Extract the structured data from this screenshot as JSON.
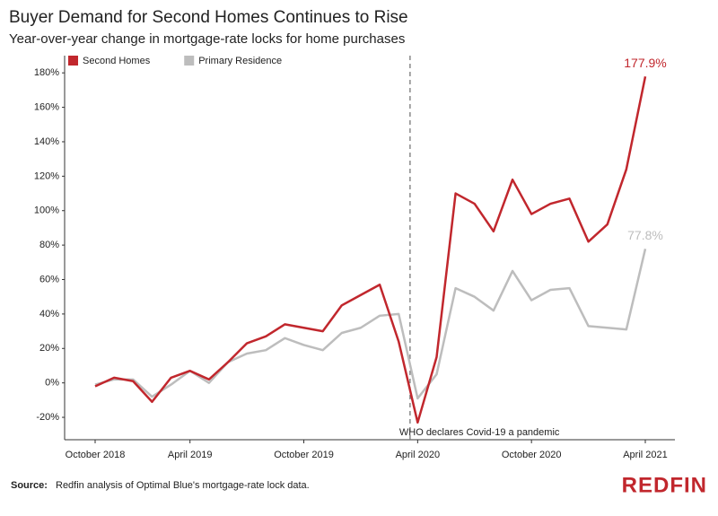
{
  "chart_data": {
    "type": "line",
    "title": "Buyer Demand for Second Homes Continues to Rise",
    "subtitle": "Year-over-year change in mortgage-rate locks for home purchases",
    "categories": [
      "October 2018",
      null,
      null,
      null,
      null,
      "April 2019",
      null,
      null,
      null,
      null,
      null,
      "October 2019",
      null,
      null,
      null,
      null,
      null,
      "April 2020",
      null,
      null,
      null,
      null,
      null,
      "October 2020",
      null,
      null,
      null,
      null,
      null,
      "April 2021"
    ],
    "series": [
      {
        "name": "Second Homes",
        "color": "#c1272d",
        "values": [
          -2,
          3,
          1,
          -11,
          3,
          7,
          2,
          12,
          23,
          27,
          34,
          32,
          30,
          45,
          51,
          57,
          24,
          -23,
          15,
          110,
          104,
          88,
          118,
          98,
          104,
          107,
          82,
          92,
          124,
          177.9
        ],
        "value_labels": [
          null,
          null,
          null,
          null,
          null,
          null,
          null,
          null,
          null,
          null,
          null,
          null,
          null,
          null,
          null,
          null,
          null,
          null,
          null,
          null,
          null,
          null,
          null,
          null,
          null,
          null,
          null,
          null,
          null,
          "177.9%"
        ]
      },
      {
        "name": "Primary Residence",
        "color": "#bdbdbd",
        "values": [
          -1,
          2,
          2,
          -8,
          -1,
          7,
          0,
          12,
          17,
          19,
          26,
          22,
          19,
          29,
          32,
          39,
          40,
          -9,
          5,
          55,
          50,
          42,
          65,
          48,
          54,
          55,
          33,
          32,
          31,
          77.8
        ],
        "value_labels": [
          null,
          null,
          null,
          null,
          null,
          null,
          null,
          null,
          null,
          null,
          null,
          null,
          null,
          null,
          null,
          null,
          null,
          null,
          null,
          null,
          null,
          null,
          null,
          null,
          null,
          null,
          null,
          null,
          null,
          "77.8%"
        ]
      }
    ],
    "ylim": [
      -33,
      190
    ],
    "yticks": [
      {
        "value": -20,
        "label": "-20%"
      },
      {
        "value": 0,
        "label": "0%"
      },
      {
        "value": 20,
        "label": "20%"
      },
      {
        "value": 40,
        "label": "40%"
      },
      {
        "value": 60,
        "label": "60%"
      },
      {
        "value": 80,
        "label": "80%"
      },
      {
        "value": 100,
        "label": "100%"
      },
      {
        "value": 120,
        "label": "120%"
      },
      {
        "value": 140,
        "label": "140%"
      },
      {
        "value": 160,
        "label": "160%"
      },
      {
        "value": 180,
        "label": "180%"
      }
    ],
    "grid": false,
    "legend": "top-left",
    "annotations": [
      {
        "text": "WHO declares Covid-19 a pandemic",
        "x": 16.6
      }
    ],
    "source_label": "Source:",
    "source": "Redfin analysis of Optimal Blue's mortgage-rate lock data.",
    "logo": "REDFIN"
  }
}
